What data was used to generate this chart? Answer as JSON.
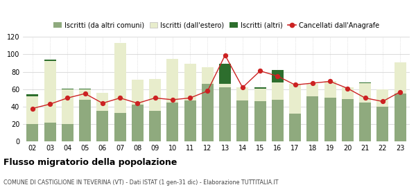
{
  "years": [
    "02",
    "03",
    "04",
    "05",
    "06",
    "07",
    "08",
    "09",
    "10",
    "11",
    "12",
    "13",
    "14",
    "15",
    "16",
    "17",
    "18",
    "19",
    "20",
    "21",
    "22",
    "23"
  ],
  "iscritti_altri_comuni": [
    20,
    22,
    20,
    48,
    35,
    33,
    42,
    35,
    45,
    47,
    66,
    62,
    47,
    46,
    48,
    32,
    52,
    50,
    49,
    45,
    40,
    55
  ],
  "iscritti_estero": [
    32,
    70,
    40,
    12,
    21,
    80,
    29,
    37,
    50,
    42,
    19,
    4,
    15,
    15,
    20,
    34,
    14,
    19,
    13,
    22,
    20,
    36
  ],
  "iscritti_altri": [
    2,
    2,
    1,
    1,
    0,
    0,
    0,
    0,
    0,
    0,
    0,
    23,
    0,
    1,
    14,
    0,
    0,
    0,
    0,
    1,
    0,
    0
  ],
  "cancellati": [
    38,
    43,
    50,
    55,
    44,
    50,
    44,
    50,
    48,
    50,
    58,
    99,
    62,
    81,
    75,
    65,
    67,
    69,
    61,
    50,
    46,
    57
  ],
  "color_altri_comuni": "#8faa7e",
  "color_estero": "#e8edcc",
  "color_altri": "#2d6e2d",
  "color_cancellati": "#cc2222",
  "title": "Flusso migratorio della popolazione",
  "subtitle": "COMUNE DI CASTIGLIONE IN TEVERINA (VT) - Dati ISTAT (1 gen-31 dic) - Elaborazione TUTTITALIA.IT",
  "ylim": [
    0,
    120
  ],
  "yticks": [
    0,
    20,
    40,
    60,
    80,
    100,
    120
  ],
  "legend_labels": [
    "Iscritti (da altri comuni)",
    "Iscritti (dall'estero)",
    "Iscritti (altri)",
    "Cancellati dall'Anagrafe"
  ],
  "bg_color": "#ffffff",
  "grid_color": "#cccccc"
}
